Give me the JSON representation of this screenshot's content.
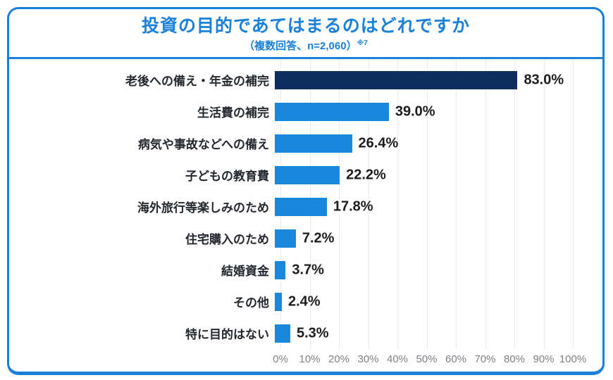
{
  "header": {
    "title": "投資の目的であてはまるのはどれですか",
    "subtitle_main": "（複数回答、n=2,060）",
    "subtitle_note": "※7"
  },
  "colors": {
    "accent": "#1a80d8",
    "bar": "#1887dc",
    "highlight_bar": "#0e2e60",
    "grid": "#e9edf1",
    "axis_text": "#7e8287",
    "category_text": "#23272e",
    "value_text": "#1c1c1c"
  },
  "chart_data": {
    "type": "bar",
    "orientation": "horizontal",
    "title": "投資の目的であてはまるのはどれですか",
    "subtitle": "（複数回答、n=2,060）※7",
    "categories": [
      "老後への備え・年金の補完",
      "生活費の補完",
      "病気や事故などへの備え",
      "子どもの教育費",
      "海外旅行等楽しみのため",
      "住宅購入のため",
      "結婚資金",
      "その他",
      "特に目的はない"
    ],
    "values": [
      83.0,
      39.0,
      26.4,
      22.2,
      17.8,
      7.2,
      3.7,
      2.4,
      5.3
    ],
    "value_labels": [
      "83.0%",
      "39.0%",
      "26.4%",
      "22.2%",
      "17.8%",
      "7.2%",
      "3.7%",
      "2.4%",
      "5.3%"
    ],
    "highlight_index": 0,
    "xlim": [
      0,
      100
    ],
    "x_ticks": [
      "0%",
      "10%",
      "20%",
      "30%",
      "40%",
      "50%",
      "60%",
      "70%",
      "80%",
      "90%",
      "100%"
    ],
    "grid": true,
    "legend": false
  }
}
